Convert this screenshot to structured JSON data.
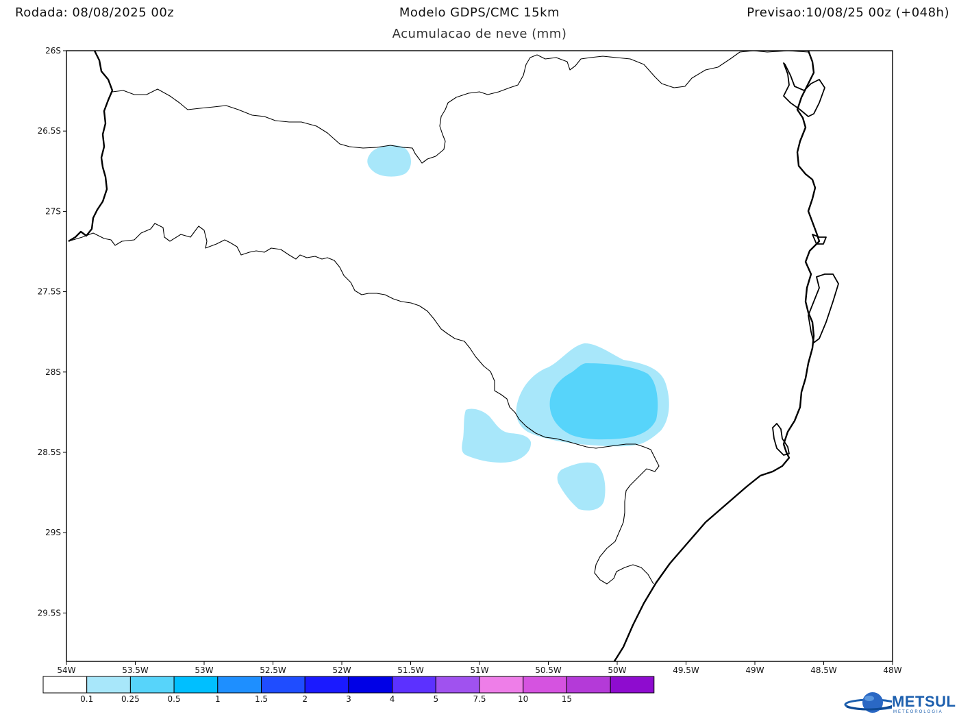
{
  "header": {
    "run": "Rodada: 08/08/2025 00z",
    "model": "Modelo GDPS/CMC 15km",
    "forecast": "Previsao:10/08/25 00z (+048h)",
    "subtitle": "Acumulacao de neve (mm)"
  },
  "map": {
    "lon_range": [
      -54,
      -48
    ],
    "lat_range": [
      -26,
      -29.8
    ],
    "lat_ticks": [
      "26S",
      "26.5S",
      "27S",
      "27.5S",
      "28S",
      "28.5S",
      "29S",
      "29.5S"
    ],
    "lon_ticks": [
      "54W",
      "53.5W",
      "53W",
      "52.5W",
      "52W",
      "51.5W",
      "51W",
      "50.5W",
      "50W",
      "49.5W",
      "49W",
      "48.5W",
      "48W"
    ],
    "field_colors": {
      "light": "#a8e7fa",
      "medium": "#57d4fa"
    }
  },
  "colorbar": {
    "colors": [
      "#ffffff",
      "#a8e7fa",
      "#57d4fa",
      "#00bfff",
      "#1e8fff",
      "#1f4dff",
      "#1a1aff",
      "#0000e6",
      "#5c31ff",
      "#a052ef",
      "#ee7ee8",
      "#d553e0",
      "#b43ad8",
      "#8e0ccf"
    ],
    "labels": [
      "0.1",
      "0.25",
      "0.5",
      "1",
      "1.5",
      "2",
      "3",
      "4",
      "5",
      "7.5",
      "10",
      "15"
    ]
  },
  "logo": {
    "name": "METSUL",
    "sub": "METEOROLOGIA"
  }
}
